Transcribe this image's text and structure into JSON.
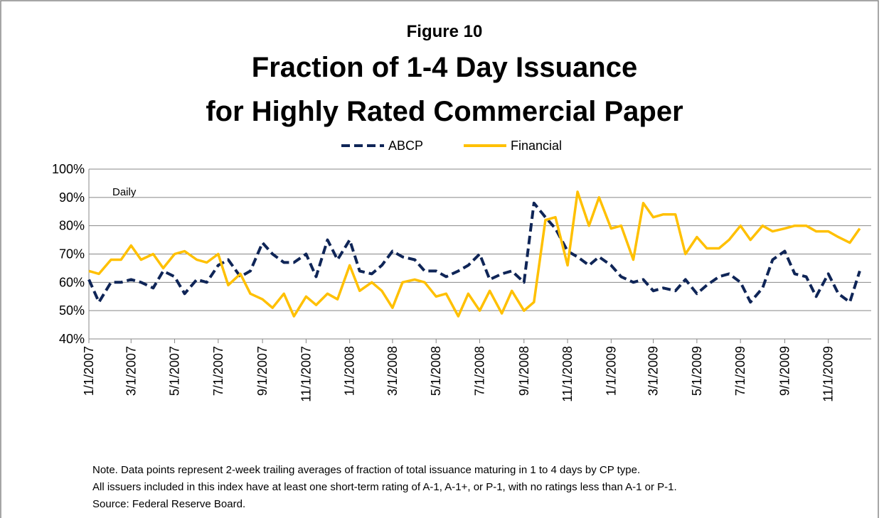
{
  "chart_data": {
    "type": "line",
    "figure_label": "Figure 10",
    "title": [
      "Fraction of 1-4 Day Issuance",
      "for Highly Rated Commercial Paper"
    ],
    "annotation": "Daily",
    "notes": [
      "Note. Data points represent 2-week trailing averages of fraction of total issuance maturing in 1 to 4 days by CP type.",
      "All  issuers included in this index have at least one short-term rating of A-1, A-1+, or P-1, with no ratings less than A-1 or P-1.",
      "Source:  Federal Reserve Board."
    ],
    "x": [
      "1/1/2007",
      "1/15/2007",
      "2/1/2007",
      "2/15/2007",
      "3/1/2007",
      "3/15/2007",
      "4/1/2007",
      "4/15/2007",
      "5/1/2007",
      "5/15/2007",
      "6/1/2007",
      "6/15/2007",
      "7/1/2007",
      "7/15/2007",
      "8/1/2007",
      "8/15/2007",
      "9/1/2007",
      "9/15/2007",
      "10/1/2007",
      "10/15/2007",
      "11/1/2007",
      "11/15/2007",
      "12/1/2007",
      "12/15/2007",
      "1/1/2008",
      "1/15/2008",
      "2/1/2008",
      "2/15/2008",
      "3/1/2008",
      "3/15/2008",
      "4/1/2008",
      "4/15/2008",
      "5/1/2008",
      "5/15/2008",
      "6/1/2008",
      "6/15/2008",
      "7/1/2008",
      "7/15/2008",
      "8/1/2008",
      "8/15/2008",
      "9/1/2008",
      "9/15/2008",
      "10/1/2008",
      "10/15/2008",
      "11/1/2008",
      "11/15/2008",
      "12/1/2008",
      "12/15/2008",
      "1/1/2009",
      "1/15/2009",
      "2/1/2009",
      "2/15/2009",
      "3/1/2009",
      "3/15/2009",
      "4/1/2009",
      "4/15/2009",
      "5/1/2009",
      "5/15/2009",
      "6/1/2009",
      "6/15/2009",
      "7/1/2009",
      "7/15/2009",
      "8/1/2009",
      "8/15/2009",
      "9/1/2009",
      "9/15/2009",
      "10/1/2009",
      "10/15/2009",
      "11/1/2009",
      "11/15/2009",
      "12/1/2009",
      "12/15/2009"
    ],
    "series": [
      {
        "name": "ABCP",
        "color": "#0f2557",
        "dashed": true,
        "values": [
          61,
          53,
          60,
          60,
          61,
          60,
          58,
          64,
          62,
          56,
          61,
          60,
          66,
          68,
          62,
          64,
          74,
          70,
          67,
          67,
          70,
          62,
          75,
          68,
          75,
          64,
          63,
          66,
          71,
          69,
          68,
          64,
          64,
          62,
          64,
          66,
          70,
          61,
          63,
          64,
          60,
          88,
          83,
          79,
          71,
          69,
          66,
          69,
          66,
          62,
          60,
          61,
          57,
          58,
          57,
          61,
          56,
          59,
          62,
          63,
          60,
          53,
          58,
          68,
          71,
          63,
          62,
          55,
          63,
          56,
          53,
          64
        ]
      },
      {
        "name": "Financial",
        "color": "#ffc000",
        "dashed": false,
        "values": [
          64,
          63,
          68,
          68,
          73,
          68,
          70,
          65,
          70,
          71,
          68,
          67,
          70,
          59,
          63,
          56,
          54,
          51,
          56,
          48,
          55,
          52,
          56,
          54,
          66,
          57,
          60,
          57,
          51,
          60,
          61,
          60,
          55,
          56,
          48,
          56,
          50,
          57,
          49,
          57,
          50,
          53,
          82,
          83,
          66,
          92,
          80,
          90,
          79,
          80,
          68,
          88,
          83,
          84,
          84,
          70,
          76,
          72,
          72,
          75,
          80,
          75,
          80,
          78,
          79,
          80,
          80,
          78,
          78,
          76,
          74,
          79
        ]
      }
    ],
    "xlim": [
      "1/1/2007",
      "12/31/2009"
    ],
    "xticks": [
      "1/1/2007",
      "3/1/2007",
      "5/1/2007",
      "7/1/2007",
      "9/1/2007",
      "11/1/2007",
      "1/1/2008",
      "3/1/2008",
      "5/1/2008",
      "7/1/2008",
      "9/1/2008",
      "11/1/2008",
      "1/1/2009",
      "3/1/2009",
      "5/1/2009",
      "7/1/2009",
      "9/1/2009",
      "11/1/2009"
    ],
    "ylim": [
      40,
      100
    ],
    "yticks": [
      {
        "value": 40,
        "label": "40%"
      },
      {
        "value": 50,
        "label": "50%"
      },
      {
        "value": 60,
        "label": "60%"
      },
      {
        "value": 70,
        "label": "70%"
      },
      {
        "value": 80,
        "label": "80%"
      },
      {
        "value": 90,
        "label": "90%"
      },
      {
        "value": 100,
        "label": "100%"
      }
    ],
    "grid": true,
    "legend": "top"
  }
}
